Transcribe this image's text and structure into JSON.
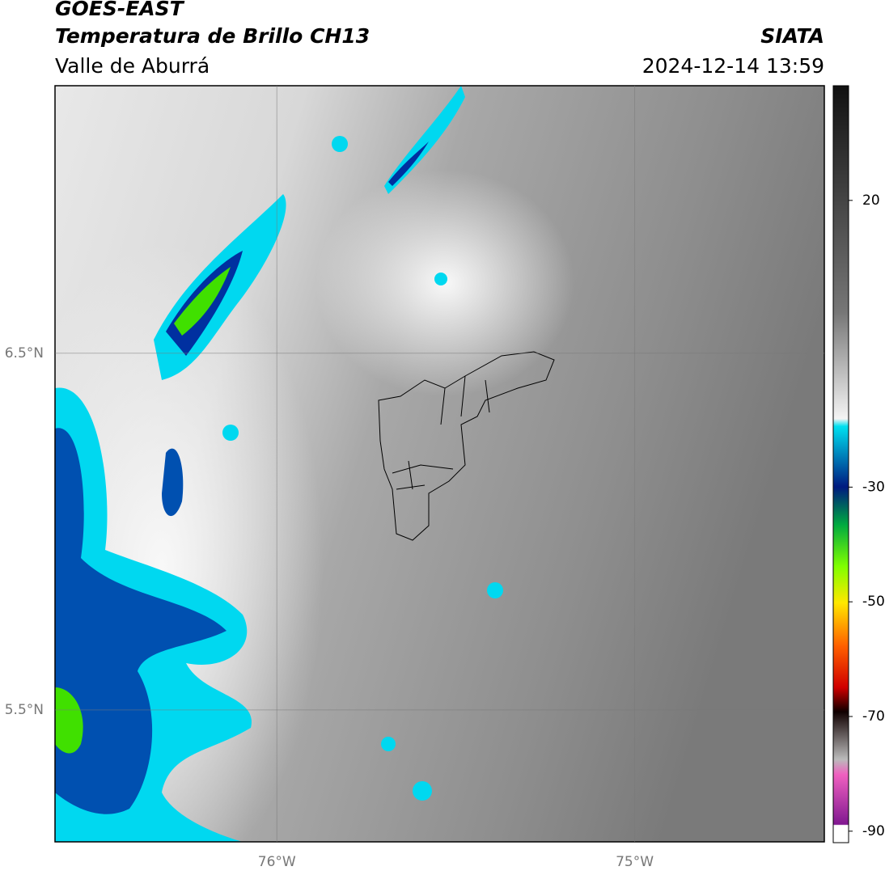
{
  "header": {
    "title": "GOES-EAST",
    "subtitle": "Temperatura de Brillo CH13",
    "region": "Valle de Aburrá",
    "source": "SIATA",
    "datetime": "2024-12-14 13:59"
  },
  "map": {
    "xlim": [
      -76.62,
      -74.47
    ],
    "ylim": [
      5.13,
      7.25
    ],
    "xticks": [
      {
        "value": -76,
        "label": "76°W"
      },
      {
        "value": -75,
        "label": "75°W"
      }
    ],
    "yticks": [
      {
        "value": 6.5,
        "label": "6.5°N"
      },
      {
        "value": 5.5,
        "label": "5.5°N"
      }
    ]
  },
  "colorbar": {
    "lim": [
      -92,
      40
    ],
    "ticks": [
      20,
      -30,
      -50,
      -70,
      -90
    ]
  }
}
